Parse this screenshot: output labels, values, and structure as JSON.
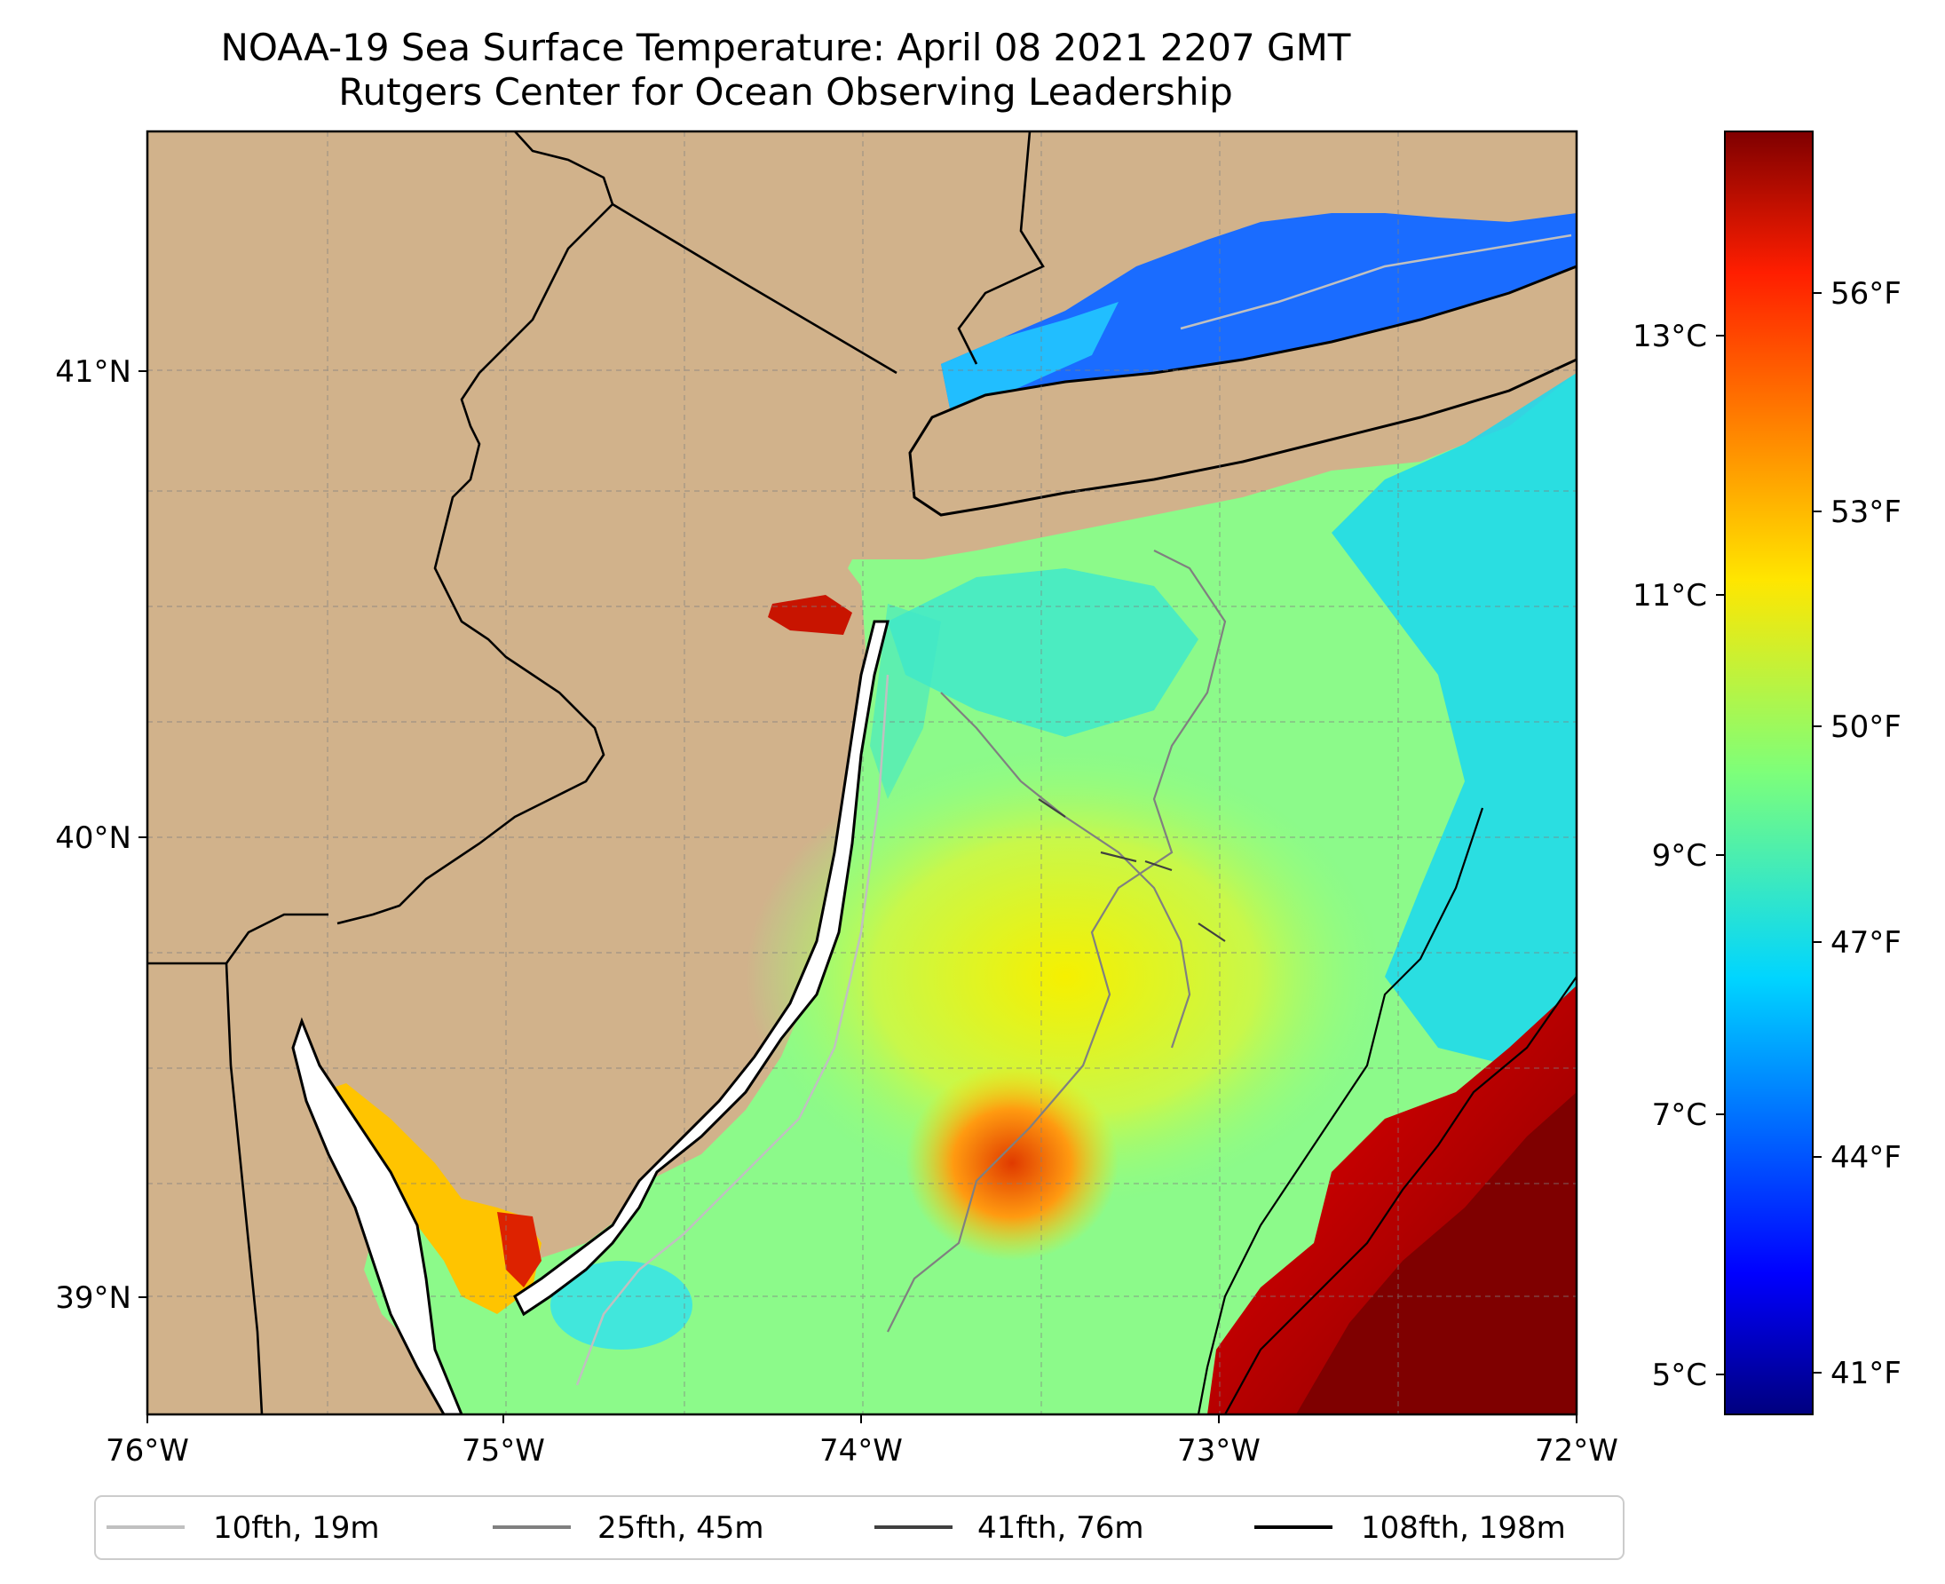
{
  "title": {
    "line1": "NOAA-19 Sea Surface Temperature: April 08 2021 2207 GMT",
    "line2": "Rutgers Center for Ocean Observing Leadership"
  },
  "map": {
    "lon_range": [
      -76.0,
      -72.0
    ],
    "lat_range": [
      38.75,
      41.55
    ],
    "x_ticks": [
      "76°W",
      "75°W",
      "74°W",
      "73°W",
      "72°W"
    ],
    "y_ticks": [
      "41°N",
      "40°N",
      "39°N"
    ],
    "gridlines": true,
    "land_color": "#d1b28b",
    "colormap": "jet"
  },
  "colorbar": {
    "celsius_ticks": [
      "13°C",
      "11°C",
      "9°C",
      "7°C",
      "5°C"
    ],
    "fahrenheit_ticks": [
      "56°F",
      "53°F",
      "50°F",
      "47°F",
      "44°F",
      "41°F"
    ]
  },
  "legend": {
    "items": [
      {
        "label": "10fth, 19m",
        "color": "#c0c0c0"
      },
      {
        "label": "25fth, 45m",
        "color": "#808080"
      },
      {
        "label": "41fth, 76m",
        "color": "#404040"
      },
      {
        "label": "108fth, 198m",
        "color": "#000000"
      }
    ]
  }
}
